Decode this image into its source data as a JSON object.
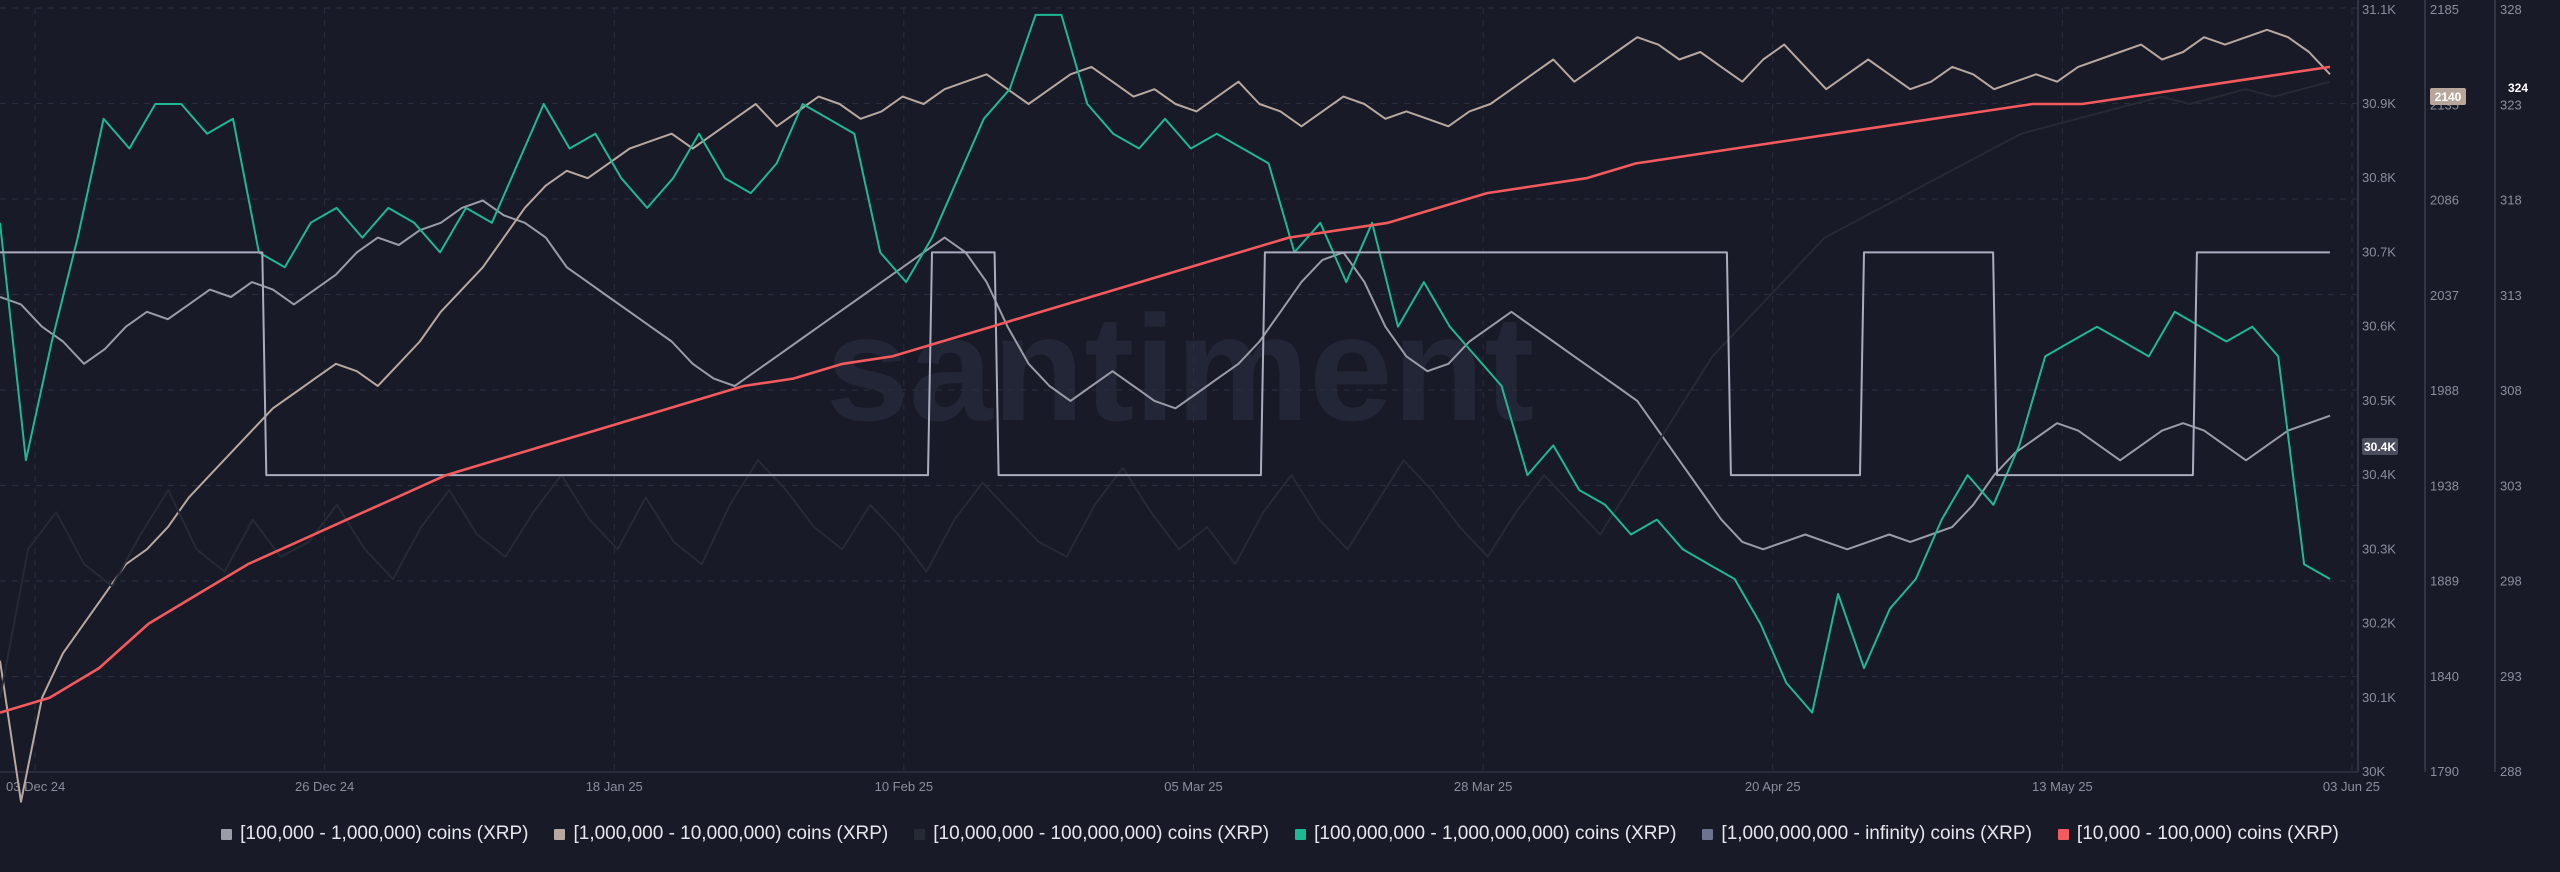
{
  "colors": {
    "background": "#181a27",
    "grid": "#2a2d3d",
    "axis_text": "#8b8e9c",
    "watermark": "#232636"
  },
  "watermark": "santiment",
  "chart_data": {
    "type": "line",
    "x_ticks": [
      "03 Dec 24",
      "26 Dec 24",
      "18 Jan 25",
      "10 Feb 25",
      "05 Mar 25",
      "28 Mar 25",
      "20 Apr 25",
      "13 May 25",
      "03 Jun 25"
    ],
    "x_range": [
      "2024-12-03",
      "2025-06-03"
    ],
    "axes": [
      {
        "id": "a1",
        "ticks": [
          "30K",
          "30.1K",
          "30.2K",
          "30.3K",
          "30.4K",
          "30.5K",
          "30.6K",
          "30.7K",
          "30.8K",
          "30.9K",
          "31.1K"
        ],
        "badge": "30.4K"
      },
      {
        "id": "a2",
        "ticks": [
          "1790",
          "1840",
          "1889",
          "1938",
          "1988",
          "2037",
          "2086",
          "2135",
          "2185"
        ],
        "badge": "2140"
      },
      {
        "id": "a3",
        "ticks": [
          "288",
          "293",
          "298",
          "303",
          "308",
          "313",
          "318",
          "323",
          "328"
        ],
        "badge": "324"
      }
    ],
    "series": [
      {
        "name": "[100,000  - 1,000,000) coins (XRP)",
        "color": "#9a9da8",
        "axis": "a1",
        "values": [
          30.64,
          30.63,
          30.6,
          30.58,
          30.55,
          30.57,
          30.6,
          30.62,
          30.61,
          30.63,
          30.65,
          30.64,
          30.66,
          30.65,
          30.63,
          30.65,
          30.67,
          30.7,
          30.72,
          30.71,
          30.73,
          30.74,
          30.76,
          30.77,
          30.75,
          30.74,
          30.72,
          30.68,
          30.66,
          30.64,
          30.62,
          30.6,
          30.58,
          30.55,
          30.53,
          30.52,
          30.54,
          30.56,
          30.58,
          30.6,
          30.62,
          30.64,
          30.66,
          30.68,
          30.7,
          30.72,
          30.7,
          30.66,
          30.6,
          30.55,
          30.52,
          30.5,
          30.52,
          30.54,
          30.52,
          30.5,
          30.49,
          30.51,
          30.53,
          30.55,
          30.58,
          30.62,
          30.66,
          30.69,
          30.7,
          30.66,
          30.6,
          30.56,
          30.54,
          30.55,
          30.58,
          30.6,
          30.62,
          30.6,
          30.58,
          30.56,
          30.54,
          30.52,
          30.5,
          30.46,
          30.42,
          30.38,
          30.34,
          30.31,
          30.3,
          30.31,
          30.32,
          30.31,
          30.3,
          30.31,
          30.32,
          30.31,
          30.32,
          30.33,
          30.36,
          30.4,
          30.43,
          30.45,
          30.47,
          30.46,
          30.44,
          30.42,
          30.44,
          30.46,
          30.47,
          30.46,
          30.44,
          30.42,
          30.44,
          30.46,
          30.47,
          30.48
        ]
      },
      {
        "name": "[1,000,000 - 10,000,000) coins (XRP)",
        "color": "#b8a8a0",
        "axis": "a1",
        "values": [
          30.15,
          29.96,
          30.1,
          30.16,
          30.2,
          30.24,
          30.28,
          30.3,
          30.33,
          30.37,
          30.4,
          30.43,
          30.46,
          30.49,
          30.51,
          30.53,
          30.55,
          30.54,
          30.52,
          30.55,
          30.58,
          30.62,
          30.65,
          30.68,
          30.72,
          30.76,
          30.79,
          30.81,
          30.8,
          30.82,
          30.84,
          30.85,
          30.86,
          30.84,
          30.86,
          30.88,
          30.9,
          30.87,
          30.89,
          30.91,
          30.9,
          30.88,
          30.89,
          30.91,
          30.9,
          30.92,
          30.93,
          30.94,
          30.92,
          30.9,
          30.92,
          30.94,
          30.95,
          30.93,
          30.91,
          30.92,
          30.9,
          30.89,
          30.91,
          30.93,
          30.9,
          30.89,
          30.87,
          30.89,
          30.91,
          30.9,
          30.88,
          30.89,
          30.88,
          30.87,
          30.89,
          30.9,
          30.92,
          30.94,
          30.96,
          30.93,
          30.95,
          30.97,
          30.99,
          30.98,
          30.96,
          30.97,
          30.95,
          30.93,
          30.96,
          30.98,
          30.95,
          30.92,
          30.94,
          30.96,
          30.94,
          30.92,
          30.93,
          30.95,
          30.94,
          30.92,
          30.93,
          30.94,
          30.93,
          30.95,
          30.96,
          30.97,
          30.98,
          30.96,
          30.97,
          30.99,
          30.98,
          30.99,
          31.0,
          30.99,
          30.97,
          30.94
        ]
      },
      {
        "name": "[10,000,000 - 100,000,000) coins (XRP)",
        "color": "#252a35",
        "axis": "a1",
        "values": [
          30.1,
          30.3,
          30.35,
          30.28,
          30.25,
          30.32,
          30.38,
          30.3,
          30.27,
          30.34,
          30.29,
          30.31,
          30.36,
          30.3,
          30.26,
          30.33,
          30.38,
          30.32,
          30.29,
          30.35,
          30.4,
          30.34,
          30.3,
          30.37,
          30.31,
          30.28,
          30.36,
          30.42,
          30.38,
          30.33,
          30.3,
          30.36,
          30.32,
          30.27,
          30.34,
          30.39,
          30.35,
          30.31,
          30.29,
          30.36,
          30.41,
          30.35,
          30.3,
          30.33,
          30.28,
          30.35,
          30.4,
          30.34,
          30.3,
          30.36,
          30.42,
          30.38,
          30.33,
          30.29,
          30.35,
          30.4,
          30.36,
          30.32,
          30.38,
          30.44,
          30.5,
          30.56,
          30.6,
          30.64,
          30.68,
          30.72,
          30.74,
          30.76,
          30.78,
          30.8,
          30.82,
          30.84,
          30.86,
          30.87,
          30.88,
          30.89,
          30.9,
          30.91,
          30.9,
          30.91,
          30.92,
          30.91,
          30.92,
          30.93
        ]
      },
      {
        "name": "[100,000,000 - 1,000,000,000) coins (XRP)",
        "color": "#1fb894",
        "axis": "a1",
        "values": [
          30.74,
          30.42,
          30.58,
          30.72,
          30.88,
          30.84,
          30.9,
          30.9,
          30.86,
          30.88,
          30.7,
          30.68,
          30.74,
          30.76,
          30.72,
          30.76,
          30.74,
          30.7,
          30.76,
          30.74,
          30.82,
          30.9,
          30.84,
          30.86,
          30.8,
          30.76,
          30.8,
          30.86,
          30.8,
          30.78,
          30.82,
          30.9,
          30.88,
          30.86,
          30.7,
          30.66,
          30.72,
          30.8,
          30.88,
          30.92,
          31.02,
          31.02,
          30.9,
          30.86,
          30.84,
          30.88,
          30.84,
          30.86,
          30.84,
          30.82,
          30.7,
          30.74,
          30.66,
          30.74,
          30.6,
          30.66,
          30.6,
          30.56,
          30.52,
          30.4,
          30.44,
          30.38,
          30.36,
          30.32,
          30.34,
          30.3,
          30.28,
          30.26,
          30.2,
          30.12,
          30.08,
          30.24,
          30.14,
          30.22,
          30.26,
          30.34,
          30.4,
          30.36,
          30.44,
          30.56,
          30.58,
          30.6,
          30.58,
          30.56,
          30.62,
          30.6,
          30.58,
          30.6,
          30.56,
          30.28,
          30.26
        ]
      },
      {
        "name": "[1,000,000,000 - infinity) coins (XRP)",
        "color": "#a8acbd",
        "axis": "a1",
        "values": [
          30.7,
          30.7,
          30.7,
          30.7,
          30.4,
          30.4,
          30.4,
          30.4,
          30.4,
          30.4,
          30.4,
          30.4,
          30.4,
          30.4,
          30.7,
          30.4,
          30.4,
          30.4,
          30.4,
          30.7,
          30.7,
          30.7,
          30.7,
          30.7,
          30.7,
          30.7,
          30.4,
          30.4,
          30.7,
          30.7,
          30.4,
          30.4,
          30.4,
          30.7,
          30.7,
          30.7
        ]
      },
      {
        "name": "[10,000 - 100,000) coins (XRP)",
        "color": "#f25a5e",
        "axis": "a1",
        "values": [
          30.08,
          30.1,
          30.14,
          30.2,
          30.24,
          30.28,
          30.31,
          30.34,
          30.37,
          30.4,
          30.42,
          30.44,
          30.46,
          30.48,
          30.5,
          30.52,
          30.53,
          30.55,
          30.56,
          30.58,
          30.6,
          30.62,
          30.64,
          30.66,
          30.68,
          30.7,
          30.72,
          30.73,
          30.74,
          30.76,
          30.78,
          30.79,
          30.8,
          30.82,
          30.83,
          30.84,
          30.85,
          30.86,
          30.87,
          30.88,
          30.89,
          30.9,
          30.9,
          30.91,
          30.92,
          30.93,
          30.94,
          30.95
        ]
      }
    ]
  },
  "legend": [
    {
      "label": "[100,000  - 1,000,000) coins (XRP)",
      "color": "#9a9da8"
    },
    {
      "label": "[1,000,000 - 10,000,000) coins (XRP)",
      "color": "#b8a8a0"
    },
    {
      "label": "[10,000,000 - 100,000,000) coins (XRP)",
      "color": "#252a35"
    },
    {
      "label": "[100,000,000 - 1,000,000,000) coins (XRP)",
      "color": "#1fb894"
    },
    {
      "label": "[1,000,000,000 - infinity) coins (XRP)",
      "color": "#6d7390"
    },
    {
      "label": "[10,000 - 100,000) coins (XRP)",
      "color": "#f25a5e"
    }
  ]
}
